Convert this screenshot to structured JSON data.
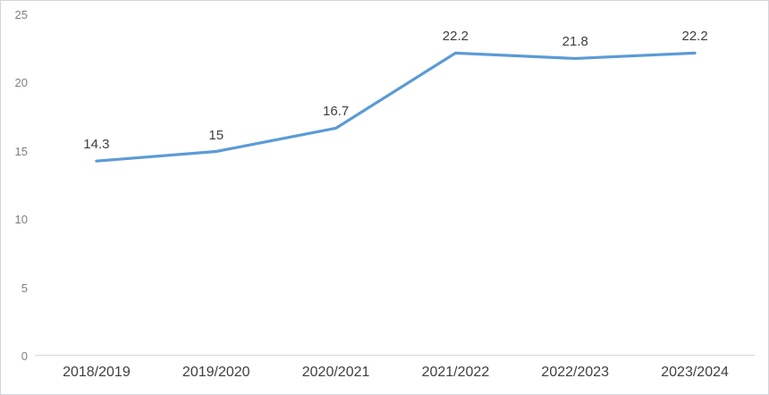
{
  "chart_data": {
    "type": "line",
    "title": "",
    "xlabel": "",
    "ylabel": "",
    "categories": [
      "2018/2019",
      "2019/2020",
      "2020/2021",
      "2021/2022",
      "2022/2023",
      "2023/2024"
    ],
    "series": [
      {
        "name": "",
        "values": [
          14.3,
          15,
          16.7,
          22.2,
          21.8,
          22.2
        ]
      }
    ],
    "data_labels": [
      "14.3",
      "15",
      "16.7",
      "22.2",
      "21.8",
      "22.2"
    ],
    "data_label_position": "above",
    "y_ticks": [
      0,
      5,
      10,
      15,
      20,
      25
    ],
    "ylim": [
      0,
      25
    ],
    "grid": "off",
    "legend": "none",
    "line_color": "#5B9BD5",
    "axis_line_color": "#D9D9D9",
    "y_tick_label_color": "#7f7f7f",
    "x_tick_label_color": "#404040",
    "data_label_color": "#3f3f3f",
    "background_color": "#ffffff",
    "frame_border_color": "#d3d6d9"
  }
}
